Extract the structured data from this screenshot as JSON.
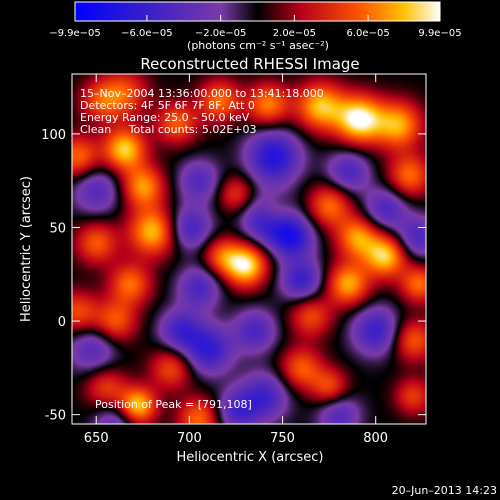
{
  "chart_data": {
    "type": "heatmap",
    "title": "Reconstructed RHESSI Image",
    "xlabel": "Heliocentric X (arcsec)",
    "ylabel": "Heliocentric Y (arcsec)",
    "xlim": [
      637,
      827
    ],
    "ylim": [
      -55,
      132
    ],
    "xticks": [
      650,
      700,
      750,
      800
    ],
    "yticks": [
      -50,
      0,
      50,
      100
    ],
    "colorbar": {
      "range": [
        -9.9e-05,
        9.9e-05
      ],
      "tick_values": [
        -9.9e-05,
        -6e-05,
        -2e-05,
        2e-05,
        6e-05,
        9.9e-05
      ],
      "tick_labels": [
        "−9.9e−05",
        "−6.0e−05",
        "−2.0e−05",
        "2.0e−05",
        "6.0e−05",
        "9.9e−05"
      ],
      "units": "(photons cm⁻² s⁻¹ asec⁻²)"
    },
    "annotations": {
      "time": "15–Nov–2004 13:36:00.000 to 13:41:18.000",
      "detectors": "Detectors: 4F 5F 6F 7F 8F, Att 0",
      "energy": "Energy Range: 25.0 – 50.0 keV",
      "method": "Clean     Total counts: 5.02E+03",
      "peak": "Position of Peak = [791,108]"
    },
    "blobs": [
      {
        "x": 791,
        "y": 108,
        "v": 1.0,
        "s": 9
      },
      {
        "x": 770,
        "y": 115,
        "v": 0.8,
        "s": 9
      },
      {
        "x": 812,
        "y": 105,
        "v": 0.75,
        "s": 9
      },
      {
        "x": 742,
        "y": 116,
        "v": 0.65,
        "s": 8
      },
      {
        "x": 716,
        "y": 118,
        "v": 0.6,
        "s": 8
      },
      {
        "x": 693,
        "y": 106,
        "v": 0.55,
        "s": 8
      },
      {
        "x": 665,
        "y": 122,
        "v": 0.5,
        "s": 9
      },
      {
        "x": 652,
        "y": 118,
        "v": 0.45,
        "s": 8
      },
      {
        "x": 665,
        "y": 92,
        "v": 0.85,
        "s": 8
      },
      {
        "x": 640,
        "y": 88,
        "v": 0.6,
        "s": 8
      },
      {
        "x": 675,
        "y": 72,
        "v": 0.7,
        "s": 8
      },
      {
        "x": 680,
        "y": 48,
        "v": 0.8,
        "s": 9
      },
      {
        "x": 650,
        "y": 42,
        "v": 0.55,
        "s": 8
      },
      {
        "x": 668,
        "y": 20,
        "v": 0.6,
        "s": 8
      },
      {
        "x": 640,
        "y": 5,
        "v": 0.5,
        "s": 8
      },
      {
        "x": 660,
        "y": 0,
        "v": 0.55,
        "s": 8
      },
      {
        "x": 730,
        "y": 30,
        "v": 0.95,
        "s": 8
      },
      {
        "x": 717,
        "y": 35,
        "v": 0.5,
        "s": 7
      },
      {
        "x": 745,
        "y": 58,
        "v": 0.5,
        "s": 7
      },
      {
        "x": 725,
        "y": 68,
        "v": 0.45,
        "s": 7
      },
      {
        "x": 775,
        "y": 62,
        "v": 0.6,
        "s": 8
      },
      {
        "x": 790,
        "y": 45,
        "v": 0.7,
        "s": 8
      },
      {
        "x": 818,
        "y": 78,
        "v": 0.6,
        "s": 8
      },
      {
        "x": 805,
        "y": 35,
        "v": 0.85,
        "s": 8
      },
      {
        "x": 823,
        "y": 20,
        "v": 0.6,
        "s": 7
      },
      {
        "x": 785,
        "y": 20,
        "v": 0.75,
        "s": 8
      },
      {
        "x": 765,
        "y": 3,
        "v": 0.5,
        "s": 8
      },
      {
        "x": 760,
        "y": -25,
        "v": 0.55,
        "s": 8
      },
      {
        "x": 775,
        "y": -35,
        "v": 0.5,
        "s": 7
      },
      {
        "x": 820,
        "y": -10,
        "v": 0.55,
        "s": 8
      },
      {
        "x": 820,
        "y": -40,
        "v": 0.45,
        "s": 7
      },
      {
        "x": 690,
        "y": -25,
        "v": 0.5,
        "s": 8
      },
      {
        "x": 672,
        "y": -45,
        "v": 0.85,
        "s": 7
      },
      {
        "x": 705,
        "y": -52,
        "v": 0.6,
        "s": 8
      },
      {
        "x": 655,
        "y": -35,
        "v": 0.45,
        "s": 8
      },
      {
        "x": 745,
        "y": 88,
        "v": -0.75,
        "s": 10
      },
      {
        "x": 742,
        "y": 55,
        "v": -0.85,
        "s": 9
      },
      {
        "x": 755,
        "y": 45,
        "v": -0.7,
        "s": 8
      },
      {
        "x": 760,
        "y": 22,
        "v": -0.6,
        "s": 8
      },
      {
        "x": 700,
        "y": 50,
        "v": -0.55,
        "s": 8
      },
      {
        "x": 705,
        "y": 18,
        "v": -0.5,
        "s": 8
      },
      {
        "x": 710,
        "y": -15,
        "v": -0.65,
        "s": 9
      },
      {
        "x": 695,
        "y": -5,
        "v": -0.55,
        "s": 8
      },
      {
        "x": 735,
        "y": -5,
        "v": -0.5,
        "s": 8
      },
      {
        "x": 740,
        "y": -40,
        "v": -0.55,
        "s": 9
      },
      {
        "x": 725,
        "y": -48,
        "v": -0.5,
        "s": 8
      },
      {
        "x": 800,
        "y": -5,
        "v": -0.6,
        "s": 9
      },
      {
        "x": 805,
        "y": 60,
        "v": -0.5,
        "s": 8
      },
      {
        "x": 822,
        "y": 45,
        "v": -0.5,
        "s": 8
      },
      {
        "x": 785,
        "y": 80,
        "v": -0.5,
        "s": 8
      },
      {
        "x": 650,
        "y": 70,
        "v": -0.45,
        "s": 9
      },
      {
        "x": 648,
        "y": -15,
        "v": -0.45,
        "s": 9
      },
      {
        "x": 660,
        "y": -55,
        "v": -0.4,
        "s": 8
      },
      {
        "x": 705,
        "y": 75,
        "v": -0.45,
        "s": 8
      },
      {
        "x": 780,
        "y": -50,
        "v": -0.45,
        "s": 8
      }
    ]
  },
  "footer": {
    "date": "20–Jun–2013 14:23"
  }
}
